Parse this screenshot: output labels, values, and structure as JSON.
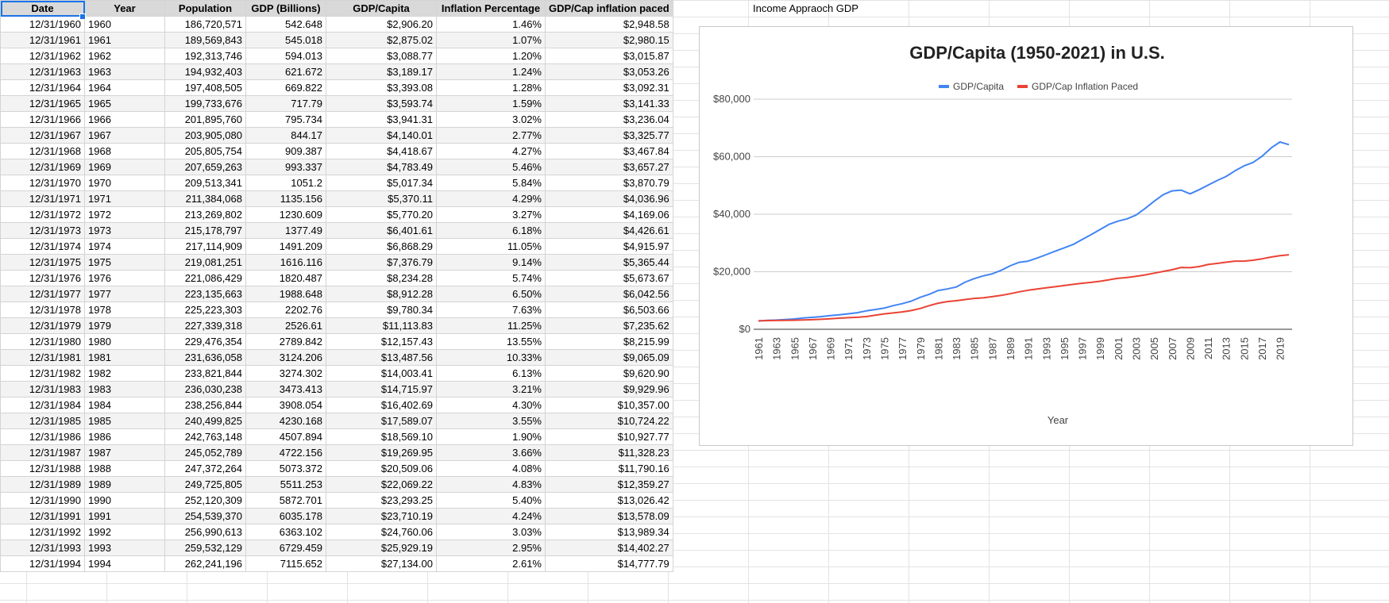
{
  "sheet": {
    "headers": [
      "Date",
      "Year",
      "Population",
      "GDP (Billions)",
      "GDP/Capita",
      "Inflation Percentage",
      "GDP/Cap inflation paced"
    ],
    "rows": [
      [
        "12/31/1960",
        "1960",
        "186,720,571",
        "542.648",
        "$2,906.20",
        "1.46%",
        "$2,948.58"
      ],
      [
        "12/31/1961",
        "1961",
        "189,569,843",
        "545.018",
        "$2,875.02",
        "1.07%",
        "$2,980.15"
      ],
      [
        "12/31/1962",
        "1962",
        "192,313,746",
        "594.013",
        "$3,088.77",
        "1.20%",
        "$3,015.87"
      ],
      [
        "12/31/1963",
        "1963",
        "194,932,403",
        "621.672",
        "$3,189.17",
        "1.24%",
        "$3,053.26"
      ],
      [
        "12/31/1964",
        "1964",
        "197,408,505",
        "669.822",
        "$3,393.08",
        "1.28%",
        "$3,092.31"
      ],
      [
        "12/31/1965",
        "1965",
        "199,733,676",
        "717.79",
        "$3,593.74",
        "1.59%",
        "$3,141.33"
      ],
      [
        "12/31/1966",
        "1966",
        "201,895,760",
        "795.734",
        "$3,941.31",
        "3.02%",
        "$3,236.04"
      ],
      [
        "12/31/1967",
        "1967",
        "203,905,080",
        "844.17",
        "$4,140.01",
        "2.77%",
        "$3,325.77"
      ],
      [
        "12/31/1968",
        "1968",
        "205,805,754",
        "909.387",
        "$4,418.67",
        "4.27%",
        "$3,467.84"
      ],
      [
        "12/31/1969",
        "1969",
        "207,659,263",
        "993.337",
        "$4,783.49",
        "5.46%",
        "$3,657.27"
      ],
      [
        "12/31/1970",
        "1970",
        "209,513,341",
        "1051.2",
        "$5,017.34",
        "5.84%",
        "$3,870.79"
      ],
      [
        "12/31/1971",
        "1971",
        "211,384,068",
        "1135.156",
        "$5,370.11",
        "4.29%",
        "$4,036.96"
      ],
      [
        "12/31/1972",
        "1972",
        "213,269,802",
        "1230.609",
        "$5,770.20",
        "3.27%",
        "$4,169.06"
      ],
      [
        "12/31/1973",
        "1973",
        "215,178,797",
        "1377.49",
        "$6,401.61",
        "6.18%",
        "$4,426.61"
      ],
      [
        "12/31/1974",
        "1974",
        "217,114,909",
        "1491.209",
        "$6,868.29",
        "11.05%",
        "$4,915.97"
      ],
      [
        "12/31/1975",
        "1975",
        "219,081,251",
        "1616.116",
        "$7,376.79",
        "9.14%",
        "$5,365.44"
      ],
      [
        "12/31/1976",
        "1976",
        "221,086,429",
        "1820.487",
        "$8,234.28",
        "5.74%",
        "$5,673.67"
      ],
      [
        "12/31/1977",
        "1977",
        "223,135,663",
        "1988.648",
        "$8,912.28",
        "6.50%",
        "$6,042.56"
      ],
      [
        "12/31/1978",
        "1978",
        "225,223,303",
        "2202.76",
        "$9,780.34",
        "7.63%",
        "$6,503.66"
      ],
      [
        "12/31/1979",
        "1979",
        "227,339,318",
        "2526.61",
        "$11,113.83",
        "11.25%",
        "$7,235.62"
      ],
      [
        "12/31/1980",
        "1980",
        "229,476,354",
        "2789.842",
        "$12,157.43",
        "13.55%",
        "$8,215.99"
      ],
      [
        "12/31/1981",
        "1981",
        "231,636,058",
        "3124.206",
        "$13,487.56",
        "10.33%",
        "$9,065.09"
      ],
      [
        "12/31/1982",
        "1982",
        "233,821,844",
        "3274.302",
        "$14,003.41",
        "6.13%",
        "$9,620.90"
      ],
      [
        "12/31/1983",
        "1983",
        "236,030,238",
        "3473.413",
        "$14,715.97",
        "3.21%",
        "$9,929.96"
      ],
      [
        "12/31/1984",
        "1984",
        "238,256,844",
        "3908.054",
        "$16,402.69",
        "4.30%",
        "$10,357.00"
      ],
      [
        "12/31/1985",
        "1985",
        "240,499,825",
        "4230.168",
        "$17,589.07",
        "3.55%",
        "$10,724.22"
      ],
      [
        "12/31/1986",
        "1986",
        "242,763,148",
        "4507.894",
        "$18,569.10",
        "1.90%",
        "$10,927.77"
      ],
      [
        "12/31/1987",
        "1987",
        "245,052,789",
        "4722.156",
        "$19,269.95",
        "3.66%",
        "$11,328.23"
      ],
      [
        "12/31/1988",
        "1988",
        "247,372,264",
        "5073.372",
        "$20,509.06",
        "4.08%",
        "$11,790.16"
      ],
      [
        "12/31/1989",
        "1989",
        "249,725,805",
        "5511.253",
        "$22,069.22",
        "4.83%",
        "$12,359.27"
      ],
      [
        "12/31/1990",
        "1990",
        "252,120,309",
        "5872.701",
        "$23,293.25",
        "5.40%",
        "$13,026.42"
      ],
      [
        "12/31/1991",
        "1991",
        "254,539,370",
        "6035.178",
        "$23,710.19",
        "4.24%",
        "$13,578.09"
      ],
      [
        "12/31/1992",
        "1992",
        "256,990,613",
        "6363.102",
        "$24,760.06",
        "3.03%",
        "$13,989.34"
      ],
      [
        "12/31/1993",
        "1993",
        "259,532,129",
        "6729.459",
        "$25,929.19",
        "2.95%",
        "$14,402.27"
      ],
      [
        "12/31/1994",
        "1994",
        "262,241,196",
        "7115.652",
        "$27,134.00",
        "2.61%",
        "$14,777.79"
      ]
    ]
  },
  "side_label": "Income Appraoch GDP",
  "chart_data": {
    "type": "line",
    "title": "GDP/Capita (1950-2021) in U.S.",
    "xlabel": "Year",
    "ylabel": "",
    "ylim": [
      0,
      80000
    ],
    "y_ticks": [
      "$0",
      "$20,000",
      "$40,000",
      "$60,000",
      "$80,000"
    ],
    "x_tick_labels": [
      "1961",
      "1963",
      "1965",
      "1967",
      "1969",
      "1971",
      "1973",
      "1975",
      "1977",
      "1979",
      "1981",
      "1983",
      "1985",
      "1987",
      "1989",
      "1991",
      "1993",
      "1995",
      "1997",
      "1999",
      "2001",
      "2003",
      "2005",
      "2007",
      "2009",
      "2011",
      "2013",
      "2015",
      "2017",
      "2019"
    ],
    "x": [
      1961,
      1962,
      1963,
      1964,
      1965,
      1966,
      1967,
      1968,
      1969,
      1970,
      1971,
      1972,
      1973,
      1974,
      1975,
      1976,
      1977,
      1978,
      1979,
      1980,
      1981,
      1982,
      1983,
      1984,
      1985,
      1986,
      1987,
      1988,
      1989,
      1990,
      1991,
      1992,
      1993,
      1994,
      1995,
      1996,
      1997,
      1998,
      1999,
      2000,
      2001,
      2002,
      2003,
      2004,
      2005,
      2006,
      2007,
      2008,
      2009,
      2010,
      2011,
      2012,
      2013,
      2014,
      2015,
      2016,
      2017,
      2018,
      2019,
      2020
    ],
    "legend_position": "top",
    "grid": true,
    "series": [
      {
        "name": "GDP/Capita",
        "color": "#4285f4",
        "values": [
          2875,
          3089,
          3189,
          3393,
          3594,
          3941,
          4140,
          4419,
          4783,
          5017,
          5370,
          5770,
          6402,
          6868,
          7377,
          8234,
          8912,
          9780,
          11114,
          12157,
          13488,
          14003,
          14716,
          16403,
          17589,
          18569,
          19270,
          20509,
          22069,
          23293,
          23710,
          24760,
          25929,
          27134,
          28300,
          29500,
          31200,
          32900,
          34700,
          36500,
          37600,
          38400,
          39700,
          42000,
          44500,
          46800,
          48100,
          48400,
          47100,
          48500,
          50100,
          51700,
          53100,
          55100,
          56800,
          58000,
          60100,
          63000,
          65100,
          64200
        ]
      },
      {
        "name": "GDP/Cap Inflation Paced",
        "color": "#ea4335",
        "values": [
          2980,
          3016,
          3053,
          3092,
          3141,
          3236,
          3326,
          3468,
          3657,
          3871,
          4037,
          4169,
          4427,
          4916,
          5365,
          5674,
          6043,
          6504,
          7236,
          8216,
          9065,
          9621,
          9930,
          10357,
          10724,
          10928,
          11328,
          11790,
          12359,
          13026,
          13578,
          13989,
          14402,
          14778,
          15200,
          15600,
          16000,
          16300,
          16700,
          17200,
          17700,
          18000,
          18400,
          18900,
          19500,
          20100,
          20700,
          21500,
          21400,
          21800,
          22500,
          22900,
          23300,
          23700,
          23700,
          24000,
          24500,
          25100,
          25600,
          25900
        ]
      }
    ]
  }
}
